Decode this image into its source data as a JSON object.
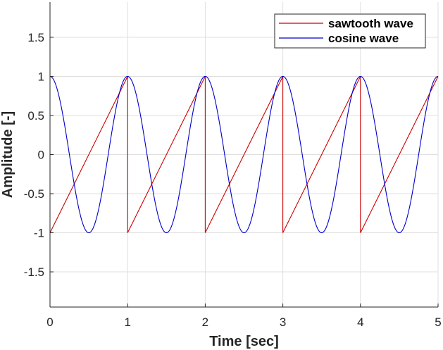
{
  "chart_data": {
    "type": "line",
    "xlabel": "Time [sec]",
    "ylabel": "Amplitude [-]",
    "xlim": [
      0,
      5
    ],
    "ylim": [
      -1.95,
      1.95
    ],
    "grid": true,
    "x_ticks": [
      0,
      1,
      2,
      3,
      4,
      5
    ],
    "x_tick_labels": [
      "0",
      "1",
      "2",
      "3",
      "4",
      "5"
    ],
    "y_ticks": [
      1.5,
      1,
      0.5,
      0,
      -0.5,
      -1,
      -1.5
    ],
    "y_tick_labels": [
      "1.5",
      "1",
      "0.5",
      "0",
      "-0.5",
      "-1",
      "-1.5"
    ],
    "legend_position": "top-right",
    "series": [
      {
        "name": "sawtooth wave",
        "color": "#cc0000",
        "function": "sawtooth",
        "period": 1,
        "min": -1,
        "max": 1,
        "x_range": [
          0,
          5
        ]
      },
      {
        "name": "cosine wave",
        "color": "#0000cc",
        "function": "cosine",
        "period": 1,
        "amplitude": 1,
        "x_range": [
          0,
          5
        ]
      }
    ]
  }
}
